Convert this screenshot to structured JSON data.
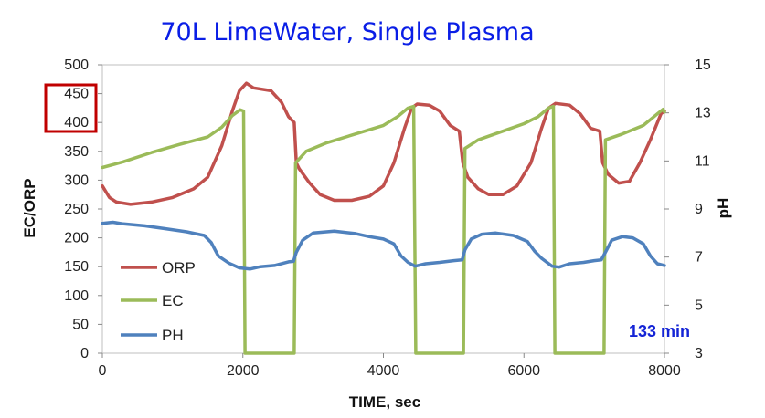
{
  "chart_data": {
    "type": "line",
    "title": "70L LimeWater, Single Plasma",
    "xlabel": "TIME, sec",
    "ylabel": "EC/ORP",
    "y2label": "pH",
    "xlim": [
      0,
      8000
    ],
    "ylim": [
      0,
      500
    ],
    "y2lim": [
      3,
      15
    ],
    "x_ticks": [
      0,
      2000,
      4000,
      6000,
      8000
    ],
    "y_ticks": [
      0,
      50,
      100,
      150,
      200,
      250,
      300,
      350,
      400,
      450,
      500
    ],
    "y2_ticks": [
      3,
      5,
      7,
      9,
      11,
      13,
      15
    ],
    "grid": false,
    "legend_position": "left-bottom",
    "annotation": "133 min",
    "colors": {
      "ORP": "#c0504d",
      "EC": "#9bbb59",
      "PH": "#4f81bd",
      "title": "#0a1ee6",
      "annotation": "#1424d6",
      "highlight_box": "#c00000"
    },
    "series": [
      {
        "name": "ORP",
        "axis": "left",
        "points": [
          [
            0,
            290
          ],
          [
            100,
            270
          ],
          [
            200,
            262
          ],
          [
            400,
            258
          ],
          [
            700,
            262
          ],
          [
            1000,
            270
          ],
          [
            1300,
            285
          ],
          [
            1500,
            305
          ],
          [
            1700,
            360
          ],
          [
            1850,
            420
          ],
          [
            1950,
            455
          ],
          [
            2050,
            468
          ],
          [
            2150,
            460
          ],
          [
            2400,
            455
          ],
          [
            2550,
            435
          ],
          [
            2650,
            410
          ],
          [
            2730,
            400
          ],
          [
            2760,
            330
          ],
          [
            2800,
            320
          ],
          [
            2950,
            295
          ],
          [
            3100,
            275
          ],
          [
            3300,
            265
          ],
          [
            3550,
            265
          ],
          [
            3800,
            272
          ],
          [
            4000,
            290
          ],
          [
            4150,
            330
          ],
          [
            4300,
            390
          ],
          [
            4400,
            425
          ],
          [
            4480,
            432
          ],
          [
            4650,
            430
          ],
          [
            4800,
            420
          ],
          [
            4950,
            395
          ],
          [
            5080,
            385
          ],
          [
            5130,
            330
          ],
          [
            5200,
            305
          ],
          [
            5350,
            285
          ],
          [
            5500,
            275
          ],
          [
            5700,
            275
          ],
          [
            5900,
            290
          ],
          [
            6100,
            330
          ],
          [
            6250,
            390
          ],
          [
            6350,
            425
          ],
          [
            6450,
            433
          ],
          [
            6650,
            430
          ],
          [
            6800,
            415
          ],
          [
            6950,
            390
          ],
          [
            7080,
            385
          ],
          [
            7120,
            330
          ],
          [
            7200,
            310
          ],
          [
            7350,
            295
          ],
          [
            7500,
            298
          ],
          [
            7650,
            330
          ],
          [
            7800,
            370
          ],
          [
            7950,
            415
          ],
          [
            8000,
            420
          ]
        ]
      },
      {
        "name": "EC",
        "axis": "left",
        "points": [
          [
            0,
            322
          ],
          [
            300,
            332
          ],
          [
            700,
            348
          ],
          [
            1100,
            362
          ],
          [
            1500,
            375
          ],
          [
            1700,
            392
          ],
          [
            1850,
            412
          ],
          [
            1960,
            422
          ],
          [
            2010,
            420
          ],
          [
            2030,
            0
          ],
          [
            2730,
            0
          ],
          [
            2750,
            330
          ],
          [
            2900,
            350
          ],
          [
            3200,
            365
          ],
          [
            3600,
            380
          ],
          [
            4000,
            395
          ],
          [
            4200,
            410
          ],
          [
            4350,
            425
          ],
          [
            4430,
            428
          ],
          [
            4460,
            0
          ],
          [
            5140,
            0
          ],
          [
            5160,
            355
          ],
          [
            5350,
            370
          ],
          [
            5700,
            385
          ],
          [
            6000,
            398
          ],
          [
            6200,
            410
          ],
          [
            6350,
            425
          ],
          [
            6420,
            428
          ],
          [
            6440,
            0
          ],
          [
            7140,
            0
          ],
          [
            7160,
            370
          ],
          [
            7400,
            380
          ],
          [
            7700,
            395
          ],
          [
            7900,
            415
          ],
          [
            7980,
            423
          ],
          [
            8000,
            418
          ]
        ]
      },
      {
        "name": "PH",
        "axis": "right",
        "points": [
          [
            0,
            8.4
          ],
          [
            150,
            8.45
          ],
          [
            300,
            8.38
          ],
          [
            600,
            8.3
          ],
          [
            900,
            8.18
          ],
          [
            1200,
            8.05
          ],
          [
            1450,
            7.9
          ],
          [
            1550,
            7.6
          ],
          [
            1650,
            7.05
          ],
          [
            1800,
            6.75
          ],
          [
            1950,
            6.55
          ],
          [
            2100,
            6.5
          ],
          [
            2250,
            6.6
          ],
          [
            2450,
            6.65
          ],
          [
            2650,
            6.8
          ],
          [
            2720,
            6.82
          ],
          [
            2760,
            7.2
          ],
          [
            2850,
            7.7
          ],
          [
            3000,
            8.0
          ],
          [
            3300,
            8.08
          ],
          [
            3600,
            7.98
          ],
          [
            3800,
            7.85
          ],
          [
            4000,
            7.75
          ],
          [
            4150,
            7.55
          ],
          [
            4250,
            7.05
          ],
          [
            4350,
            6.78
          ],
          [
            4450,
            6.62
          ],
          [
            4600,
            6.72
          ],
          [
            4800,
            6.78
          ],
          [
            5000,
            6.85
          ],
          [
            5120,
            6.88
          ],
          [
            5160,
            7.3
          ],
          [
            5250,
            7.75
          ],
          [
            5400,
            7.95
          ],
          [
            5600,
            8.0
          ],
          [
            5850,
            7.9
          ],
          [
            6050,
            7.65
          ],
          [
            6150,
            7.25
          ],
          [
            6250,
            6.95
          ],
          [
            6400,
            6.62
          ],
          [
            6500,
            6.58
          ],
          [
            6650,
            6.72
          ],
          [
            6850,
            6.78
          ],
          [
            7000,
            6.85
          ],
          [
            7100,
            6.88
          ],
          [
            7160,
            7.2
          ],
          [
            7250,
            7.7
          ],
          [
            7400,
            7.85
          ],
          [
            7550,
            7.8
          ],
          [
            7700,
            7.55
          ],
          [
            7800,
            7.05
          ],
          [
            7900,
            6.72
          ],
          [
            8000,
            6.65
          ]
        ]
      }
    ]
  }
}
